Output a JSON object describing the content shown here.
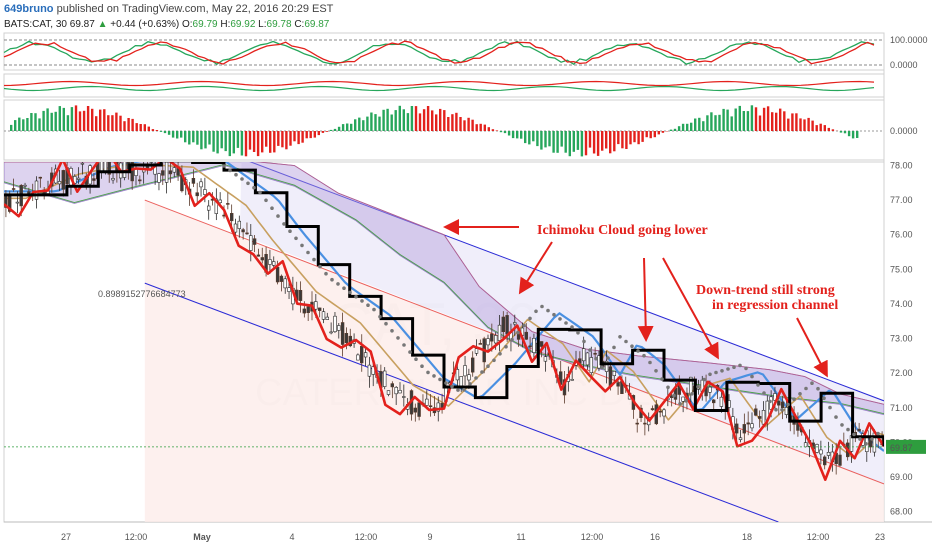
{
  "header": {
    "user": "649bruno",
    "published": "published on TradingView.com, May 22, 2016 20:29 EST",
    "symbol": "BATS:CAT, 30",
    "last": "69.87",
    "change": "+0.44 (+0.63%)",
    "o_label": "O:",
    "o": "69.79",
    "h_label": "H:",
    "h": "69.92",
    "l_label": "L:",
    "l": "69.78",
    "c_label": "C:",
    "c": "69.87"
  },
  "watermark": {
    "symbol": "CAT, 30",
    "name": "CATERPILLAR INC DE"
  },
  "panes": {
    "osc1": {
      "labels": [
        "100.0000",
        "0.0000"
      ]
    },
    "osc2": {
      "labels": []
    },
    "hist": {
      "labels": [
        "0.0000"
      ]
    }
  },
  "price_axis": {
    "labels": [
      "78.00",
      "77.00",
      "76.00",
      "75.00",
      "74.00",
      "73.00",
      "72.00",
      "71.00",
      "70.00",
      "69.00",
      "68.00"
    ],
    "current_price": "69.87"
  },
  "time_axis": {
    "labels": [
      "27",
      "12:00",
      "May",
      "4",
      "12:00",
      "9",
      "11",
      "12:00",
      "16",
      "18",
      "12:00",
      "23"
    ]
  },
  "annotations": {
    "cloud": "Ichimoku Cloud going lower",
    "trend_line1": "Down-trend still strong",
    "trend_line2": "in regression channel",
    "regression_value": "0.8989152776684773"
  },
  "colors": {
    "up": "#26a65b",
    "down": "#e3211c",
    "annotation": "#e3211c",
    "channel": "#2b2bd6",
    "cloud": "#b39ddb",
    "blue_ma": "#4a90e2",
    "black_line": "#000000",
    "red_line": "#e3211c",
    "tan_line": "#c8a060"
  },
  "chart_data": {
    "type": "candlestick",
    "title": "",
    "ylim": [
      67.7,
      78.1
    ],
    "price_path": [
      [
        0,
        76.9
      ],
      [
        0.06,
        77.6
      ],
      [
        0.12,
        77.9
      ],
      [
        0.19,
        77.8
      ],
      [
        0.25,
        76.7
      ],
      [
        0.28,
        75.7
      ],
      [
        0.33,
        74.2
      ],
      [
        0.38,
        73.3
      ],
      [
        0.44,
        71.5
      ],
      [
        0.48,
        70.9
      ],
      [
        0.52,
        71.9
      ],
      [
        0.57,
        73.4
      ],
      [
        0.61,
        72.7
      ],
      [
        0.64,
        71.6
      ],
      [
        0.66,
        72.5
      ],
      [
        0.69,
        71.9
      ],
      [
        0.73,
        70.5
      ],
      [
        0.76,
        71.4
      ],
      [
        0.8,
        71.7
      ],
      [
        0.84,
        70.3
      ],
      [
        0.88,
        71.2
      ],
      [
        0.91,
        70.0
      ],
      [
        0.94,
        69.4
      ],
      [
        0.97,
        70.1
      ],
      [
        1.0,
        69.9
      ]
    ],
    "key_levels": {
      "last": 69.87
    }
  }
}
